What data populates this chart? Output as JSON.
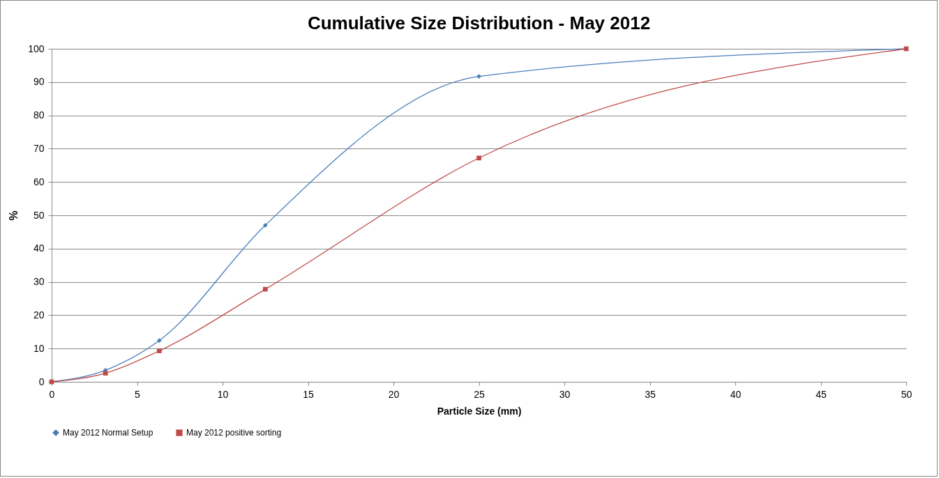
{
  "chart_data": {
    "type": "line",
    "title": "Cumulative Size Distribution - May 2012",
    "xlabel": "Particle Size (mm)",
    "ylabel": "%",
    "x": [
      0,
      3.15,
      6.3,
      12.5,
      25,
      50
    ],
    "series": [
      {
        "name": "May 2012 Normal Setup",
        "color": "#4a7ebb",
        "marker": "diamond",
        "values": [
          0,
          3.5,
          12.4,
          47,
          91.7,
          100
        ]
      },
      {
        "name": "May 2012 positive sorting",
        "color": "#be4b48",
        "marker": "square",
        "values": [
          0,
          2.6,
          9.3,
          27.8,
          67.2,
          100
        ]
      }
    ],
    "xlim": [
      0,
      50
    ],
    "xticks": [
      0,
      5,
      10,
      15,
      20,
      25,
      30,
      35,
      40,
      45,
      50
    ],
    "ylim": [
      0,
      100
    ],
    "yticks": [
      0,
      10,
      20,
      30,
      40,
      50,
      60,
      70,
      80,
      90,
      100
    ],
    "grid": "y",
    "legend": "bottom",
    "line_style": "solid"
  }
}
